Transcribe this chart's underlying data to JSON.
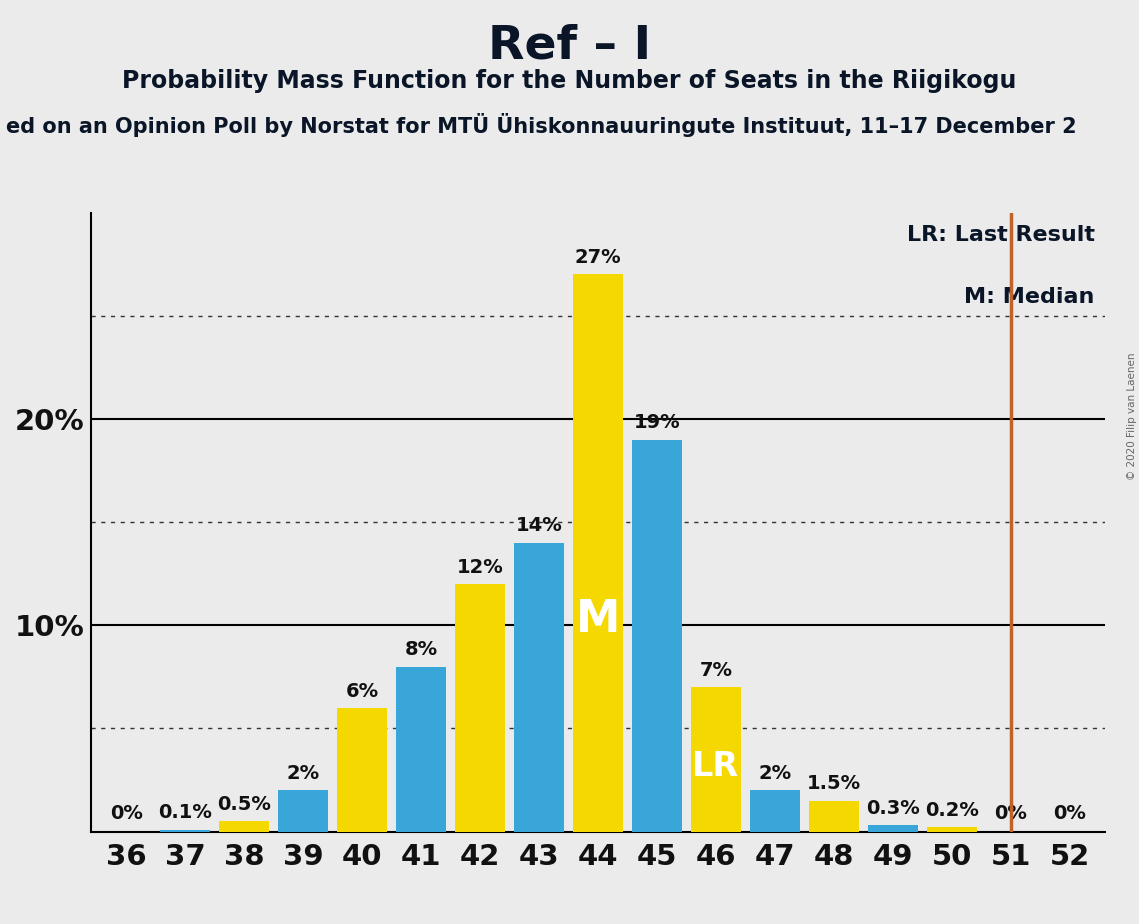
{
  "title": "Ref – I",
  "subtitle1": "Probability Mass Function for the Number of Seats in the Riigikogu",
  "subtitle2": "ed on an Opinion Poll by Norstat for MTÜ Ühiskonnauuringute Instituut, 11–17 December 2",
  "copyright": "© 2020 Filip van Laenen",
  "seats": [
    36,
    37,
    38,
    39,
    40,
    41,
    42,
    43,
    44,
    45,
    46,
    47,
    48,
    49,
    50,
    51,
    52
  ],
  "values": [
    0.0,
    0.1,
    0.5,
    2.0,
    6.0,
    8.0,
    12.0,
    14.0,
    27.0,
    19.0,
    7.0,
    2.0,
    1.5,
    0.3,
    0.2,
    0.0,
    0.0
  ],
  "colors": [
    "#F5D800",
    "#38A6D9",
    "#F5D800",
    "#38A6D9",
    "#F5D800",
    "#38A6D9",
    "#F5D800",
    "#38A6D9",
    "#F5D800",
    "#38A6D9",
    "#F5D800",
    "#38A6D9",
    "#F5D800",
    "#38A6D9",
    "#F5D800",
    "#38A6D9",
    "#F5D800"
  ],
  "labels": [
    "0%",
    "0.1%",
    "0.5%",
    "2%",
    "6%",
    "8%",
    "12%",
    "14%",
    "27%",
    "19%",
    "7%",
    "2%",
    "1.5%",
    "0.3%",
    "0.2%",
    "0%",
    "0%"
  ],
  "median_seat": 44,
  "lr_seat": 46,
  "lr_line_seat": 51,
  "lr_line_color": "#C0622A",
  "ylim": [
    0,
    30
  ],
  "major_yticks": [
    10,
    20
  ],
  "dotted_yticks": [
    5,
    15,
    25
  ],
  "background_color": "#EBEBEB",
  "title_fontsize": 34,
  "subtitle1_fontsize": 17,
  "subtitle2_fontsize": 15,
  "bar_label_fontsize": 14,
  "axis_tick_fontsize": 21,
  "legend_fontsize": 16,
  "M_label_fontsize": 32,
  "LR_label_fontsize": 24
}
